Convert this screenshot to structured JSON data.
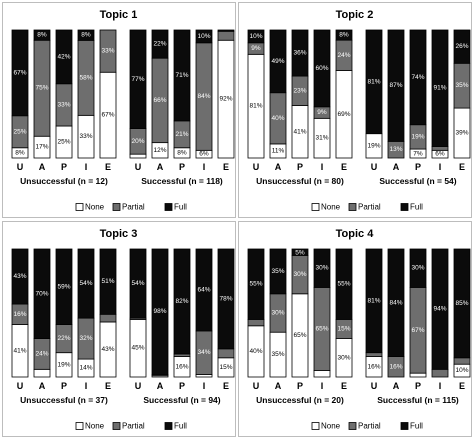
{
  "segment_order": [
    "None",
    "Partial",
    "Full"
  ],
  "colors": {
    "None": "#ffffff",
    "Partial": "#6e6e6e",
    "Full": "#0b0b0b",
    "panel_border": "#bdbdbd",
    "bar_border": "#000000"
  },
  "chart_data": [
    {
      "type": "bar",
      "stacked": true,
      "title": "Topic 1",
      "categories": [
        "U",
        "A",
        "P",
        "I",
        "E"
      ],
      "legend": [
        "None",
        "Partial",
        "Full"
      ],
      "legend_position": "bottom",
      "groups": [
        {
          "label": "Unsuccessful (n = 12)",
          "bars": [
            {
              "category": "U",
              "None": 8,
              "Partial": 25,
              "Full": 67,
              "labels": {
                "None": "8%",
                "Partial": "25%",
                "Full": "67%"
              }
            },
            {
              "category": "A",
              "None": 17,
              "Partial": 75,
              "Full": 8,
              "labels": {
                "None": "17%",
                "Partial": "75%",
                "Full": "8%"
              }
            },
            {
              "category": "P",
              "None": 25,
              "Partial": 33,
              "Full": 42,
              "labels": {
                "None": "25%",
                "Partial": "33%",
                "Full": "42%"
              }
            },
            {
              "category": "I",
              "None": 33,
              "Partial": 58,
              "Full": 8,
              "labels": {
                "None": "33%",
                "Partial": "58%",
                "Full": "8%"
              }
            },
            {
              "category": "E",
              "None": 67,
              "Partial": 33,
              "Full": 0,
              "labels": {
                "None": "67%",
                "Partial": "33%"
              }
            }
          ]
        },
        {
          "label": "Successful (n = 118)",
          "bars": [
            {
              "category": "U",
              "None": 3,
              "Partial": 20,
              "Full": 77,
              "labels": {
                "Partial": "20%",
                "Full": "77%"
              }
            },
            {
              "category": "A",
              "None": 12,
              "Partial": 66,
              "Full": 22,
              "labels": {
                "None": "12%",
                "Partial": "66%",
                "Full": "22%"
              }
            },
            {
              "category": "P",
              "None": 8,
              "Partial": 21,
              "Full": 71,
              "labels": {
                "None": "8%",
                "Partial": "21%",
                "Full": "71%"
              }
            },
            {
              "category": "I",
              "None": 6,
              "Partial": 84,
              "Full": 10,
              "labels": {
                "None": "6%",
                "Partial": "84%",
                "Full": "10%"
              }
            },
            {
              "category": "E",
              "None": 92,
              "Partial": 7,
              "Full": 1,
              "labels": {
                "None": "92%",
                "Partial": "7%"
              }
            }
          ]
        }
      ]
    },
    {
      "type": "bar",
      "stacked": true,
      "title": "Topic 2",
      "categories": [
        "U",
        "A",
        "P",
        "I",
        "E"
      ],
      "legend": [
        "None",
        "Partial",
        "Full"
      ],
      "legend_position": "bottom",
      "groups": [
        {
          "label": "Unsuccessful (n = 80)",
          "bars": [
            {
              "category": "U",
              "None": 81,
              "Partial": 9,
              "Full": 10,
              "labels": {
                "None": "81%",
                "Partial": "9%",
                "Full": "10%"
              }
            },
            {
              "category": "A",
              "None": 11,
              "Partial": 40,
              "Full": 49,
              "labels": {
                "None": "11%",
                "Partial": "40%",
                "Full": "49%"
              }
            },
            {
              "category": "P",
              "None": 41,
              "Partial": 23,
              "Full": 36,
              "labels": {
                "None": "41%",
                "Partial": "23%",
                "Full": "36%"
              }
            },
            {
              "category": "I",
              "None": 31,
              "Partial": 9,
              "Full": 60,
              "labels": {
                "None": "31%",
                "Partial": "9%",
                "Full": "60%"
              }
            },
            {
              "category": "E",
              "None": 69,
              "Partial": 24,
              "Full": 8,
              "labels": {
                "None": "69%",
                "Partial": "24%",
                "Full": "8%"
              }
            }
          ]
        },
        {
          "label": "Successful (n = 54)",
          "bars": [
            {
              "category": "U",
              "None": 19,
              "Partial": 0,
              "Full": 81,
              "labels": {
                "None": "19%",
                "Full": "81%"
              }
            },
            {
              "category": "A",
              "None": 0,
              "Partial": 13,
              "Full": 87,
              "labels": {
                "Partial": "13%",
                "Full": "87%"
              }
            },
            {
              "category": "P",
              "None": 7,
              "Partial": 19,
              "Full": 74,
              "labels": {
                "None": "7%",
                "Partial": "19%",
                "Full": "74%"
              }
            },
            {
              "category": "I",
              "None": 6,
              "Partial": 3,
              "Full": 91,
              "labels": {
                "None": "6%",
                "Full": "91%"
              }
            },
            {
              "category": "E",
              "None": 39,
              "Partial": 35,
              "Full": 26,
              "labels": {
                "None": "39%",
                "Partial": "35%",
                "Full": "26%"
              }
            }
          ]
        }
      ]
    },
    {
      "type": "bar",
      "stacked": true,
      "title": "Topic 3",
      "categories": [
        "U",
        "A",
        "P",
        "I",
        "E"
      ],
      "legend": [
        "None",
        "Partial",
        "Full"
      ],
      "legend_position": "bottom",
      "groups": [
        {
          "label": "Unsuccessful (n = 37)",
          "bars": [
            {
              "category": "U",
              "None": 41,
              "Partial": 16,
              "Full": 43,
              "labels": {
                "None": "41%",
                "Partial": "16%",
                "Full": "43%"
              }
            },
            {
              "category": "A",
              "None": 6,
              "Partial": 24,
              "Full": 70,
              "labels": {
                "Partial": "24%",
                "Full": "70%"
              }
            },
            {
              "category": "P",
              "None": 19,
              "Partial": 22,
              "Full": 59,
              "labels": {
                "None": "19%",
                "Partial": "22%",
                "Full": "59%"
              }
            },
            {
              "category": "I",
              "None": 14,
              "Partial": 32,
              "Full": 54,
              "labels": {
                "None": "14%",
                "Partial": "32%",
                "Full": "54%"
              }
            },
            {
              "category": "E",
              "None": 43,
              "Partial": 6,
              "Full": 51,
              "labels": {
                "None": "43%",
                "Full": "51%"
              }
            }
          ]
        },
        {
          "label": "Successful (n = 94)",
          "bars": [
            {
              "category": "U",
              "None": 45,
              "Partial": 1,
              "Full": 54,
              "labels": {
                "None": "45%",
                "Full": "54%"
              }
            },
            {
              "category": "A",
              "None": 1,
              "Partial": 1,
              "Full": 98,
              "labels": {
                "Full": "98%"
              }
            },
            {
              "category": "P",
              "None": 16,
              "Partial": 2,
              "Full": 82,
              "labels": {
                "None": "16%",
                "Full": "82%"
              }
            },
            {
              "category": "I",
              "None": 2,
              "Partial": 34,
              "Full": 64,
              "labels": {
                "Partial": "34%",
                "Full": "64%"
              }
            },
            {
              "category": "E",
              "None": 15,
              "Partial": 7,
              "Full": 78,
              "labels": {
                "None": "15%",
                "Partial": "7%",
                "Full": "78%"
              }
            }
          ]
        }
      ]
    },
    {
      "type": "bar",
      "stacked": true,
      "title": "Topic 4",
      "categories": [
        "U",
        "A",
        "P",
        "I",
        "E"
      ],
      "legend": [
        "None",
        "Partial",
        "Full"
      ],
      "legend_position": "bottom",
      "groups": [
        {
          "label": "Unsuccessful (n = 20)",
          "bars": [
            {
              "category": "U",
              "None": 40,
              "Partial": 5,
              "Full": 55,
              "labels": {
                "None": "40%",
                "Full": "55%"
              }
            },
            {
              "category": "A",
              "None": 35,
              "Partial": 30,
              "Full": 35,
              "labels": {
                "None": "35%",
                "Partial": "30%",
                "Full": "35%"
              }
            },
            {
              "category": "P",
              "None": 65,
              "Partial": 30,
              "Full": 5,
              "labels": {
                "None": "65%",
                "Partial": "30%",
                "Full": "5%"
              }
            },
            {
              "category": "I",
              "None": 5,
              "Partial": 65,
              "Full": 30,
              "labels": {
                "Partial": "65%",
                "Full": "30%"
              }
            },
            {
              "category": "E",
              "None": 30,
              "Partial": 15,
              "Full": 55,
              "labels": {
                "None": "30%",
                "Partial": "15%",
                "Full": "55%"
              }
            }
          ]
        },
        {
          "label": "Successful (n = 115)",
          "bars": [
            {
              "category": "U",
              "None": 16,
              "Partial": 3,
              "Full": 81,
              "labels": {
                "None": "16%",
                "Full": "81%"
              }
            },
            {
              "category": "A",
              "None": 0,
              "Partial": 16,
              "Full": 84,
              "labels": {
                "Partial": "16%",
                "Full": "84%"
              }
            },
            {
              "category": "P",
              "None": 3,
              "Partial": 67,
              "Full": 30,
              "labels": {
                "Partial": "67%",
                "Full": "30%"
              }
            },
            {
              "category": "I",
              "None": 0,
              "Partial": 6,
              "Full": 94,
              "labels": {
                "Partial": "6%",
                "Full": "94%"
              }
            },
            {
              "category": "E",
              "None": 10,
              "Partial": 5,
              "Full": 85,
              "labels": {
                "None": "10%",
                "Full": "85%"
              }
            }
          ]
        }
      ]
    }
  ]
}
